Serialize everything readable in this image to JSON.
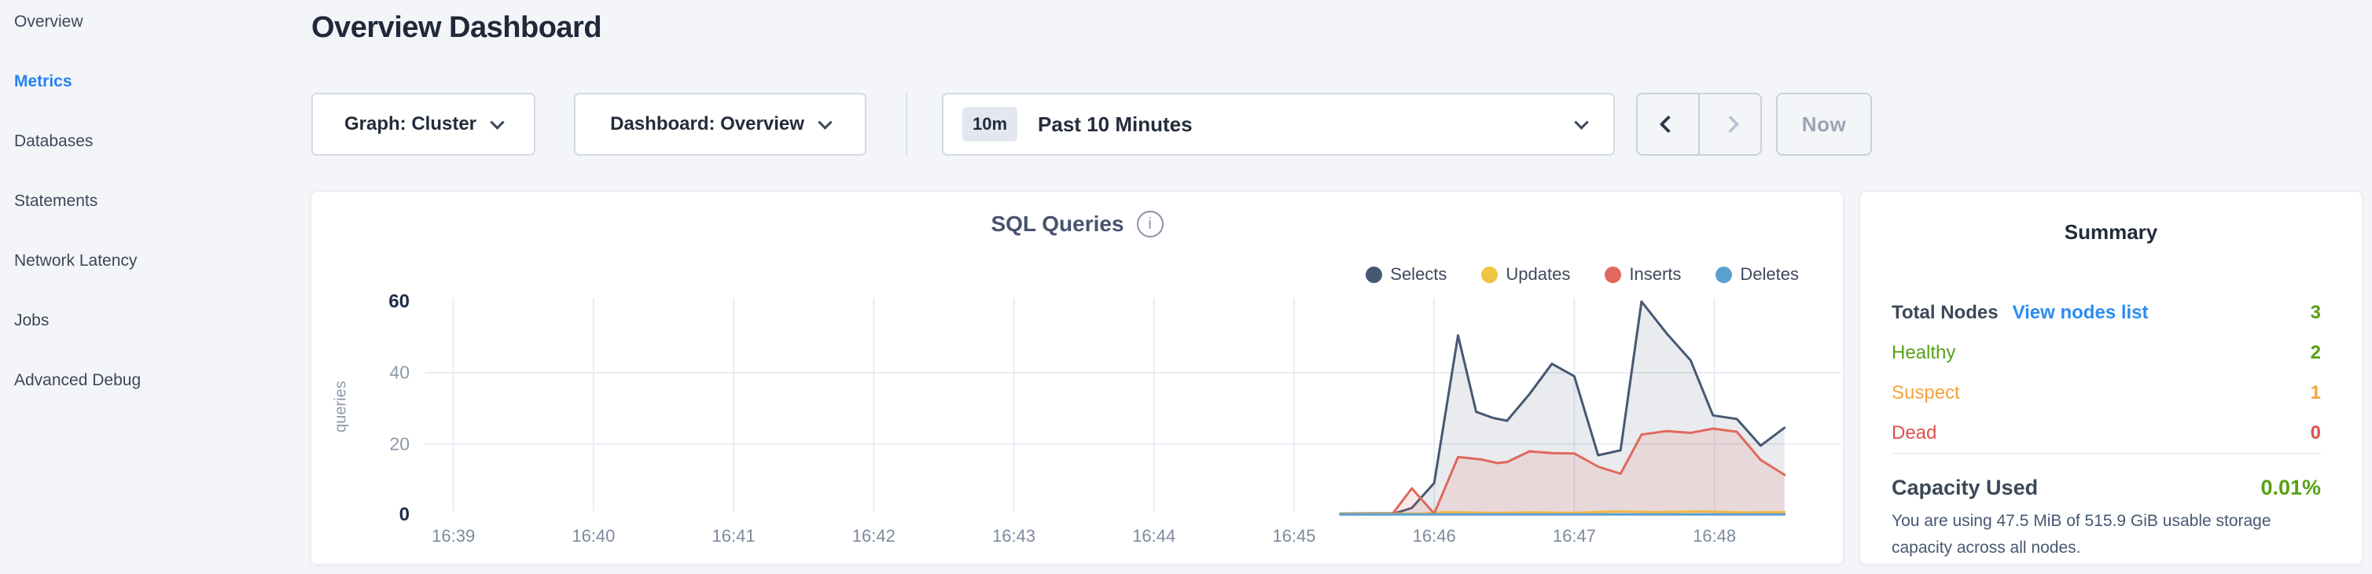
{
  "header": {
    "title": "Overview Dashboard"
  },
  "sidebar": {
    "items": [
      {
        "label": "Overview",
        "active": false
      },
      {
        "label": "Metrics",
        "active": true
      },
      {
        "label": "Databases",
        "active": false
      },
      {
        "label": "Statements",
        "active": false
      },
      {
        "label": "Network Latency",
        "active": false
      },
      {
        "label": "Jobs",
        "active": false
      },
      {
        "label": "Advanced Debug",
        "active": false
      }
    ]
  },
  "toolbar": {
    "graph_dropdown": "Graph: Cluster",
    "dashboard_dropdown": "Dashboard: Overview",
    "time_selector": {
      "badge": "10m",
      "label": "Past 10 Minutes"
    },
    "now_button": "Now"
  },
  "chart_data": {
    "type": "area",
    "title": "SQL Queries",
    "ylabel": "queries",
    "xlim": [
      -0.2,
      9.9
    ],
    "ylim": [
      0,
      61
    ],
    "grid": true,
    "legend_position": "top-right",
    "x_ticks": [
      {
        "pos": 0,
        "label": "16:39"
      },
      {
        "pos": 1,
        "label": "16:40"
      },
      {
        "pos": 2,
        "label": "16:41"
      },
      {
        "pos": 3,
        "label": "16:42"
      },
      {
        "pos": 4,
        "label": "16:43"
      },
      {
        "pos": 5,
        "label": "16:44"
      },
      {
        "pos": 6,
        "label": "16:45"
      },
      {
        "pos": 7,
        "label": "16:46"
      },
      {
        "pos": 8,
        "label": "16:47"
      },
      {
        "pos": 9,
        "label": "16:48"
      }
    ],
    "y_ticks": [
      {
        "v": 0,
        "label": "0",
        "strong": true
      },
      {
        "v": 20,
        "label": "20",
        "strong": false
      },
      {
        "v": 40,
        "label": "40",
        "strong": false
      },
      {
        "v": 60,
        "label": "60",
        "strong": true
      }
    ],
    "h_gridlines": [
      20,
      40
    ],
    "series": [
      {
        "name": "Selects",
        "color": "#475872",
        "fill": "rgba(71,88,114,0.12)",
        "points": [
          [
            6.33,
            0.4
          ],
          [
            6.72,
            0.5
          ],
          [
            6.84,
            2
          ],
          [
            7.0,
            9
          ],
          [
            7.17,
            50.5
          ],
          [
            7.3,
            29
          ],
          [
            7.42,
            27.3
          ],
          [
            7.52,
            26.5
          ],
          [
            7.68,
            34
          ],
          [
            7.84,
            42.5
          ],
          [
            8.0,
            39
          ],
          [
            8.17,
            16.8
          ],
          [
            8.33,
            18.2
          ],
          [
            8.48,
            60
          ],
          [
            8.66,
            51
          ],
          [
            8.83,
            43.5
          ],
          [
            8.99,
            28
          ],
          [
            9.16,
            27
          ],
          [
            9.33,
            19.5
          ],
          [
            9.5,
            24.5
          ]
        ]
      },
      {
        "name": "Updates",
        "color": "#f0c53f",
        "fill": null,
        "points": [
          [
            6.33,
            0.3
          ],
          [
            6.9,
            0.4
          ],
          [
            7.1,
            0.8
          ],
          [
            7.4,
            0.6
          ],
          [
            7.7,
            0.7
          ],
          [
            8.0,
            0.6
          ],
          [
            8.3,
            1.0
          ],
          [
            8.6,
            0.8
          ],
          [
            8.9,
            1.0
          ],
          [
            9.2,
            0.7
          ],
          [
            9.5,
            0.8
          ]
        ]
      },
      {
        "name": "Inserts",
        "color": "#e0685c",
        "fill": "rgba(224,104,92,0.14)",
        "points": [
          [
            6.33,
            0.2
          ],
          [
            6.7,
            0.2
          ],
          [
            6.84,
            7.5
          ],
          [
            7.0,
            0.4
          ],
          [
            7.17,
            16.3
          ],
          [
            7.34,
            15.6
          ],
          [
            7.45,
            14.6
          ],
          [
            7.52,
            14.9
          ],
          [
            7.68,
            17.9
          ],
          [
            7.84,
            17.4
          ],
          [
            8.0,
            17.3
          ],
          [
            8.17,
            13.6
          ],
          [
            8.33,
            11.6
          ],
          [
            8.48,
            22.6
          ],
          [
            8.66,
            23.6
          ],
          [
            8.83,
            23.1
          ],
          [
            8.99,
            24.3
          ],
          [
            9.16,
            23.4
          ],
          [
            9.33,
            15.5
          ],
          [
            9.5,
            11.3
          ]
        ]
      },
      {
        "name": "Deletes",
        "color": "#5b9fd0",
        "fill": null,
        "points": [
          [
            6.33,
            0.15
          ],
          [
            9.5,
            0.15
          ]
        ]
      }
    ]
  },
  "summary": {
    "title": "Summary",
    "rows": [
      {
        "label": "Total Nodes",
        "link": "View nodes list",
        "value": "3",
        "label_color": "#3c4858",
        "value_color": "#57a115"
      },
      {
        "label": "Healthy",
        "link": null,
        "value": "2",
        "label_color": "#57a115",
        "value_color": "#57a115"
      },
      {
        "label": "Suspect",
        "link": null,
        "value": "1",
        "label_color": "#f2a43a",
        "value_color": "#f2a43a"
      },
      {
        "label": "Dead",
        "link": null,
        "value": "0",
        "label_color": "#e04f4c",
        "value_color": "#e04f4c"
      }
    ],
    "capacity": {
      "label": "Capacity Used",
      "value": "0.01%",
      "value_color": "#57a115",
      "description": "You are using 47.5 MiB of 515.9 GiB usable storage capacity across all nodes."
    }
  },
  "colors": {
    "accent_blue": "#2481f0",
    "link_blue": "#2b8bf2",
    "healthy_green": "#57a115",
    "suspect_orange": "#f2a43a",
    "dead_red": "#e04f4c",
    "page_bg": "#f4f5f9",
    "gridline": "#e8ecf4"
  }
}
